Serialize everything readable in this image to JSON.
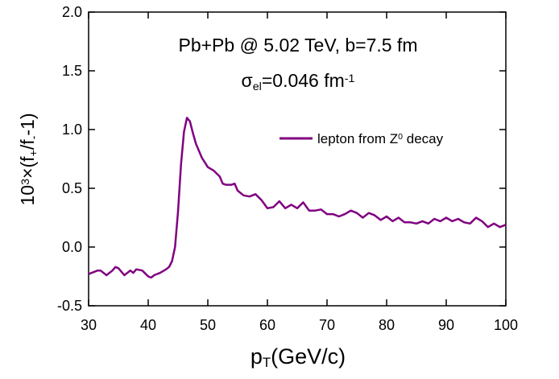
{
  "chart_data": {
    "type": "line",
    "annotations": [
      [
        {
          "text": "Pb+Pb @ 5.02 TeV, b=7.5 fm"
        }
      ],
      [
        {
          "text": "σ"
        },
        {
          "text": "el",
          "shift": "sub"
        },
        {
          "text": "=0.046 fm"
        },
        {
          "text": "-1",
          "shift": "sup"
        }
      ]
    ],
    "x_label": [
      {
        "text": "p"
      },
      {
        "text": "T",
        "shift": "sub"
      },
      {
        "text": "(GeV/c)"
      }
    ],
    "y_label": [
      {
        "text": "10"
      },
      {
        "text": "3",
        "shift": "sup"
      },
      {
        "text": "×(f"
      },
      {
        "text": "+",
        "shift": "sub"
      },
      {
        "text": "/f"
      },
      {
        "text": "-",
        "shift": "sub"
      },
      {
        "text": "-1)"
      }
    ],
    "x": [
      30,
      31,
      31.5,
      32,
      33,
      34,
      34.5,
      35,
      36,
      37,
      37.5,
      38,
      39,
      40,
      40.5,
      41,
      42,
      43,
      43.5,
      44,
      44.5,
      45,
      45.5,
      46,
      46.5,
      47,
      47.5,
      48,
      49,
      50,
      51,
      52,
      52.5,
      53,
      54,
      54.5,
      55,
      56,
      57,
      58,
      59,
      60,
      61,
      62,
      63,
      64,
      65,
      66,
      67,
      68,
      69,
      70,
      71,
      72,
      73,
      74,
      75,
      76,
      77,
      78,
      79,
      80,
      81,
      82,
      83,
      84,
      85,
      86,
      87,
      88,
      89,
      90,
      91,
      92,
      93,
      94,
      95,
      96,
      97,
      98,
      99,
      100
    ],
    "series": [
      {
        "name": [
          {
            "text": "lepton from Z"
          },
          {
            "text": "0",
            "shift": "sup"
          },
          {
            "text": " decay"
          }
        ],
        "color": "#800080",
        "values": [
          -0.23,
          -0.21,
          -0.2,
          -0.2,
          -0.24,
          -0.2,
          -0.17,
          -0.18,
          -0.24,
          -0.2,
          -0.22,
          -0.19,
          -0.2,
          -0.25,
          -0.26,
          -0.24,
          -0.22,
          -0.19,
          -0.17,
          -0.12,
          0.0,
          0.3,
          0.7,
          0.98,
          1.1,
          1.07,
          0.97,
          0.88,
          0.76,
          0.68,
          0.65,
          0.6,
          0.54,
          0.53,
          0.53,
          0.54,
          0.48,
          0.44,
          0.43,
          0.45,
          0.4,
          0.33,
          0.34,
          0.39,
          0.33,
          0.36,
          0.33,
          0.38,
          0.31,
          0.31,
          0.32,
          0.28,
          0.28,
          0.26,
          0.28,
          0.31,
          0.29,
          0.25,
          0.29,
          0.27,
          0.23,
          0.26,
          0.22,
          0.25,
          0.21,
          0.21,
          0.2,
          0.22,
          0.2,
          0.24,
          0.22,
          0.25,
          0.22,
          0.24,
          0.21,
          0.2,
          0.25,
          0.22,
          0.17,
          0.2,
          0.17,
          0.19
        ]
      }
    ],
    "xlim": [
      30,
      100
    ],
    "xticks": [
      30,
      40,
      50,
      60,
      70,
      80,
      90,
      100
    ],
    "ylim": [
      -0.5,
      2.0
    ],
    "yticks": [
      -0.5,
      {
        "value": 0,
        "label": "0.0"
      },
      0.5,
      {
        "value": 1,
        "label": "1.0"
      },
      1.5,
      {
        "value": 2,
        "label": "2.0"
      }
    ]
  }
}
